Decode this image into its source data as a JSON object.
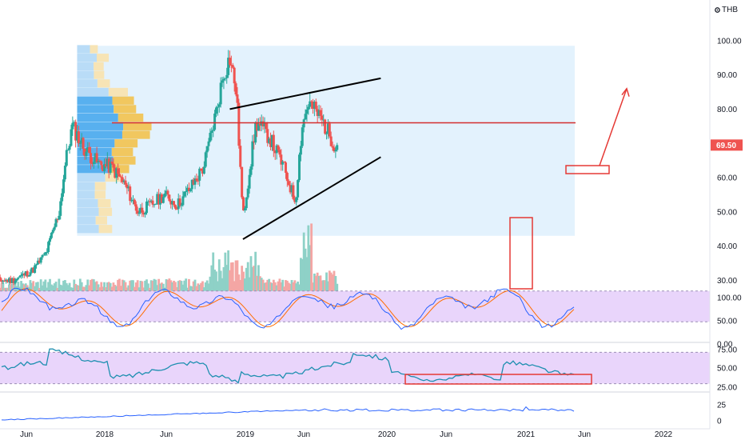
{
  "header": {
    "currency": "THB",
    "gear_icon": "gear-icon"
  },
  "colors": {
    "up": "#26a69a",
    "down": "#ef5350",
    "up_vol": "#8ed1c7",
    "down_vol": "#f4a6a4",
    "vp_up": "#58b0ef",
    "vp_down": "#f1c75f",
    "vp_up_light": "#b9dcf7",
    "vp_down_light": "#f7e4b5",
    "vp_area": "#e3f2fd",
    "poc": "#d32f2f",
    "trend": "#000000",
    "annot": "#e53935",
    "band": "#e9d5fb",
    "stoch_k": "#2962ff",
    "stoch_d": "#ff6d00",
    "rsi": "#1e8fb0",
    "bottom": "#2962ff"
  },
  "price_axis": {
    "ticks": [
      "100.00",
      "90.00",
      "80.00",
      "70.00",
      "60.00",
      "50.00",
      "40.00",
      "30.00"
    ],
    "last_price": "69.50"
  },
  "stoch_axis": {
    "ticks": [
      "100.00",
      "50.00",
      "0.00"
    ]
  },
  "rsi_axis": {
    "ticks": [
      "75.00",
      "50.00",
      "25.00"
    ]
  },
  "bottom_axis": {
    "ticks": [
      "25",
      "0"
    ]
  },
  "time_axis": {
    "labels": [
      "Jun",
      "2018",
      "Jun",
      "2019",
      "Jun",
      "2020",
      "Jun",
      "2021",
      "Jun",
      "2022"
    ]
  },
  "chart_data": {
    "type": "candlestick",
    "symbol_currency": "THB",
    "price_range": [
      26,
      102
    ],
    "current_price": 69.5,
    "weekly_close_approx": [
      {
        "date": "2017-04",
        "close": 30
      },
      {
        "date": "2017-07",
        "close": 33
      },
      {
        "date": "2017-09",
        "close": 38
      },
      {
        "date": "2017-11",
        "close": 50
      },
      {
        "date": "2017-12",
        "close": 65
      },
      {
        "date": "2018-01",
        "close": 75
      },
      {
        "date": "2018-03",
        "close": 68
      },
      {
        "date": "2018-05",
        "close": 64
      },
      {
        "date": "2018-07",
        "close": 63
      },
      {
        "date": "2018-09",
        "close": 58
      },
      {
        "date": "2018-11",
        "close": 50
      },
      {
        "date": "2019-01",
        "close": 52
      },
      {
        "date": "2019-03",
        "close": 55
      },
      {
        "date": "2019-05",
        "close": 52
      },
      {
        "date": "2019-07",
        "close": 57
      },
      {
        "date": "2019-09",
        "close": 63
      },
      {
        "date": "2019-11",
        "close": 80
      },
      {
        "date": "2019-12",
        "close": 90
      },
      {
        "date": "2020-01",
        "close": 95
      },
      {
        "date": "2020-02",
        "close": 85
      },
      {
        "date": "2020-03",
        "close": 48
      },
      {
        "date": "2020-05",
        "close": 76
      },
      {
        "date": "2020-07",
        "close": 72
      },
      {
        "date": "2020-09",
        "close": 64
      },
      {
        "date": "2020-11",
        "close": 53
      },
      {
        "date": "2020-12",
        "close": 75
      },
      {
        "date": "2021-01",
        "close": 82
      },
      {
        "date": "2021-03",
        "close": 77
      },
      {
        "date": "2021-05",
        "close": 69.5
      }
    ],
    "annotations": {
      "poc_level": 76,
      "wedge_upper": [
        {
          "date": "2020-01",
          "price": 80
        },
        {
          "date": "2021-12",
          "price": 89
        }
      ],
      "wedge_lower": [
        {
          "date": "2020-03",
          "price": 42
        },
        {
          "date": "2021-12",
          "price": 66
        }
      ],
      "target_arrow": {
        "from": 62,
        "to": 86
      }
    },
    "indicators": {
      "stochastic_range": [
        0,
        100
      ],
      "rsi_range": [
        25,
        75
      ]
    }
  }
}
